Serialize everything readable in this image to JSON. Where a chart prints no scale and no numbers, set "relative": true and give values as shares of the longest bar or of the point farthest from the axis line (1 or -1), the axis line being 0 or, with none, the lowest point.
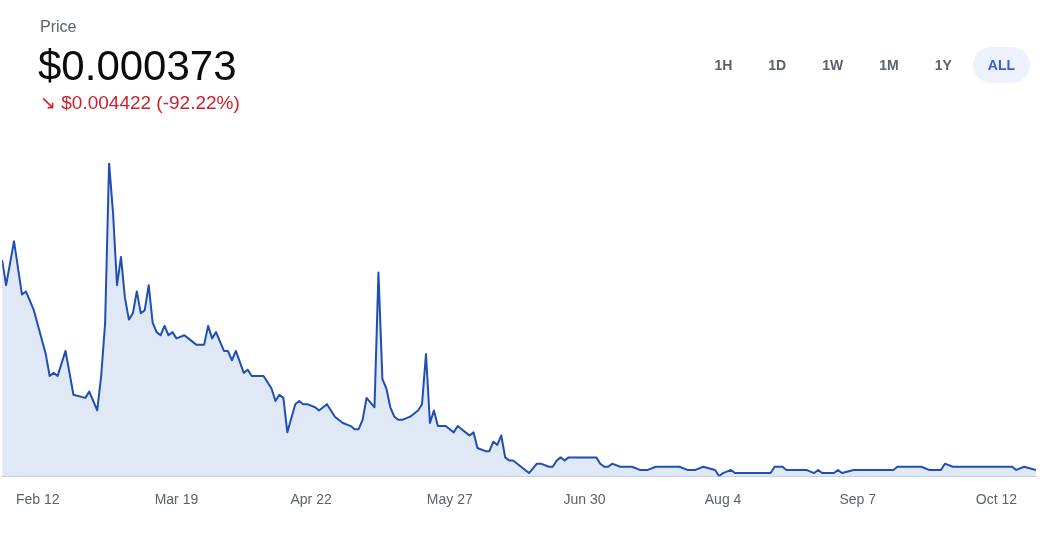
{
  "chart_data": {
    "type": "area",
    "title": "Price",
    "subtitle": "$0.000373",
    "annotations": [
      "↘ $0.004422 (-92.22%)",
      "1H",
      "1D",
      "1W",
      "1M",
      "1Y",
      "ALL"
    ],
    "relative": true,
    "grid": false,
    "xlim": [
      "--02-03",
      "--10-22"
    ],
    "legend": false,
    "marker": "none",
    "tick_labels": "x",
    "xticks": [
      {
        "value": "--02-12",
        "label": "Feb 12"
      },
      {
        "value": "--03-19",
        "label": "Mar 19"
      },
      {
        "value": "--04-22",
        "label": "Apr 22"
      },
      {
        "value": "--05-27",
        "label": "May 27"
      },
      {
        "value": "--06-30",
        "label": "Jun 30"
      },
      {
        "value": "--08-04",
        "label": "Aug 4"
      },
      {
        "value": "--09-07",
        "label": "Sep 7"
      },
      {
        "value": "--10-12",
        "label": "Oct 12"
      }
    ],
    "series": [
      {
        "color": "#1f4fb5",
        "x": [
          "--02-03",
          "--02-04",
          "--02-06",
          "--02-08",
          "--02-09",
          "--02-11",
          "--02-14",
          "--02-15",
          "--02-16",
          "--02-17",
          "--02-19",
          "--02-21",
          "--02-24",
          "--02-25",
          "--02-27",
          "--02-28",
          "--03-01",
          "--03-02",
          "--03-03",
          "--03-04",
          "--03-05",
          "--03-06",
          "--03-07",
          "--03-08",
          "--03-09",
          "--03-10",
          "--03-11",
          "--03-12",
          "--03-13",
          "--03-14",
          "--03-15",
          "--03-16",
          "--03-17",
          "--03-18",
          "--03-19",
          "--03-21",
          "--03-22",
          "--03-24",
          "--03-25",
          "--03-26",
          "--03-27",
          "--03-28",
          "--03-29",
          "--03-30",
          "--03-31",
          "--04-01",
          "--04-02",
          "--04-03",
          "--04-05",
          "--04-06",
          "--04-07",
          "--04-09",
          "--04-10",
          "--04-11",
          "--04-12",
          "--04-13",
          "--04-14",
          "--04-15",
          "--04-16",
          "--04-18",
          "--04-19",
          "--04-20",
          "--04-21",
          "--04-23",
          "--04-24",
          "--04-26",
          "--04-28",
          "--04-30",
          "--05-02",
          "--05-03",
          "--05-04",
          "--05-05",
          "--05-06",
          "--05-08",
          "--05-09",
          "--05-10",
          "--05-11",
          "--05-12",
          "--05-13",
          "--05-14",
          "--05-15",
          "--05-17",
          "--05-19",
          "--05-20",
          "--05-21",
          "--05-22",
          "--05-23",
          "--05-24",
          "--05-26",
          "--05-27",
          "--05-28",
          "--05-29",
          "--05-30",
          "--05-31",
          "--06-01",
          "--06-02",
          "--06-03",
          "--06-05",
          "--06-06",
          "--06-07",
          "--06-08",
          "--06-09",
          "--06-10",
          "--06-11",
          "--06-12",
          "--06-14",
          "--06-16",
          "--06-18",
          "--06-19",
          "--06-21",
          "--06-22",
          "--06-23",
          "--06-24",
          "--06-25",
          "--06-26",
          "--06-27",
          "--06-28",
          "--06-30",
          "--07-02",
          "--07-03",
          "--07-04",
          "--07-05",
          "--07-06",
          "--07-07",
          "--07-09",
          "--07-10",
          "--07-12",
          "--07-14",
          "--07-16",
          "--07-18",
          "--07-20",
          "--07-22",
          "--07-24",
          "--07-26",
          "--07-28",
          "--07-30",
          "--08-02",
          "--08-03",
          "--08-04",
          "--08-06",
          "--08-07",
          "--08-09",
          "--08-12",
          "--08-14",
          "--08-16",
          "--08-17",
          "--08-18",
          "--08-19",
          "--08-20",
          "--08-22",
          "--08-25",
          "--08-27",
          "--08-28",
          "--08-29",
          "--09-01",
          "--09-02",
          "--09-03",
          "--09-06",
          "--09-07",
          "--09-10",
          "--09-12",
          "--09-13",
          "--09-15",
          "--09-16",
          "--09-17",
          "--09-18",
          "--09-19",
          "--09-23",
          "--09-25",
          "--09-28",
          "--09-29",
          "--10-01",
          "--10-02",
          "--10-05",
          "--10-07",
          "--10-09",
          "--10-11",
          "--10-14",
          "--10-16",
          "--10-17",
          "--10-19",
          "--10-22"
        ],
        "values": [
          0.69,
          0.61,
          0.75,
          0.58,
          0.59,
          0.53,
          0.39,
          0.32,
          0.33,
          0.32,
          0.4,
          0.26,
          0.25,
          0.27,
          0.21,
          0.32,
          0.49,
          1.0,
          0.84,
          0.61,
          0.7,
          0.57,
          0.5,
          0.52,
          0.59,
          0.52,
          0.53,
          0.61,
          0.49,
          0.46,
          0.45,
          0.48,
          0.45,
          0.46,
          0.44,
          0.45,
          0.44,
          0.42,
          0.42,
          0.42,
          0.48,
          0.44,
          0.46,
          0.43,
          0.4,
          0.4,
          0.37,
          0.4,
          0.33,
          0.34,
          0.32,
          0.32,
          0.32,
          0.3,
          0.28,
          0.24,
          0.26,
          0.25,
          0.14,
          0.23,
          0.24,
          0.23,
          0.23,
          0.22,
          0.21,
          0.23,
          0.19,
          0.17,
          0.16,
          0.15,
          0.15,
          0.18,
          0.25,
          0.22,
          0.65,
          0.31,
          0.28,
          0.22,
          0.19,
          0.18,
          0.18,
          0.19,
          0.21,
          0.23,
          0.39,
          0.17,
          0.21,
          0.16,
          0.16,
          0.15,
          0.14,
          0.16,
          0.15,
          0.14,
          0.13,
          0.14,
          0.09,
          0.08,
          0.08,
          0.11,
          0.1,
          0.13,
          0.06,
          0.05,
          0.05,
          0.03,
          0.01,
          0.04,
          0.04,
          0.03,
          0.03,
          0.05,
          0.06,
          0.05,
          0.06,
          0.06,
          0.06,
          0.06,
          0.06,
          0.06,
          0.04,
          0.03,
          0.03,
          0.04,
          0.03,
          0.03,
          0.03,
          0.02,
          0.02,
          0.03,
          0.03,
          0.03,
          0.03,
          0.02,
          0.02,
          0.03,
          0.02,
          0,
          0.01,
          0.02,
          0.01,
          0.01,
          0.01,
          0.01,
          0.01,
          0.03,
          0.03,
          0.03,
          0.02,
          0.02,
          0.02,
          0.01,
          0.02,
          0.01,
          0.01,
          0.02,
          0.01,
          0.02,
          0.02,
          0.02,
          0.02,
          0.02,
          0.02,
          0.02,
          0.03,
          0.03,
          0.03,
          0.03,
          0.02,
          0.02,
          0.04,
          0.03,
          0.03,
          0.03,
          0.03,
          0.03,
          0.03,
          0.03,
          0.03,
          0.02,
          0.03,
          0.02
        ]
      }
    ]
  }
}
